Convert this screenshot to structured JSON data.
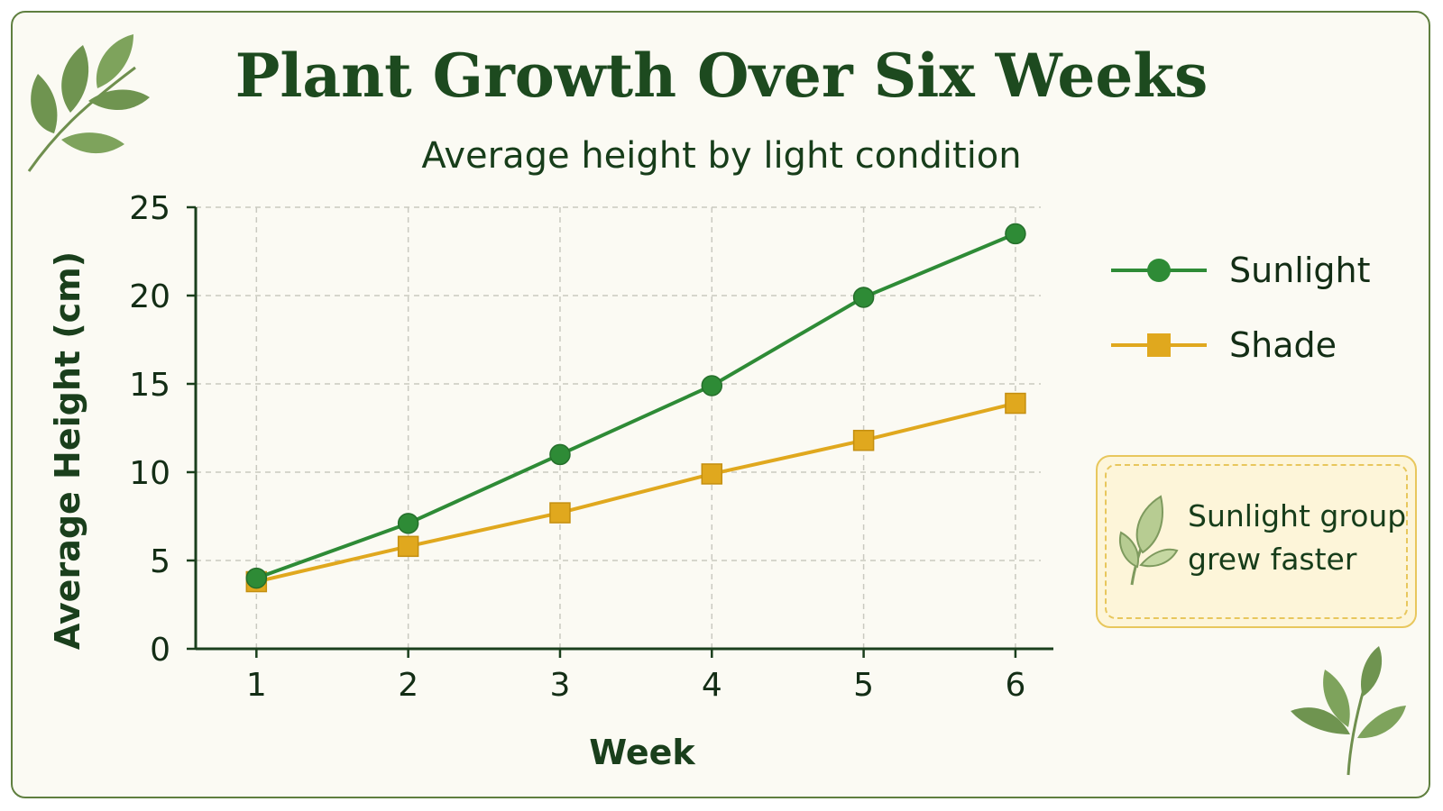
{
  "header": {
    "title": "Plant Growth Over Six Weeks",
    "subtitle": "Average height by light condition"
  },
  "note": {
    "text": "Sunlight group grew faster",
    "icon": "leaf-icon"
  },
  "decorations": {
    "top_left": "leaf-branch-icon",
    "bottom_right": "leaf-branch-icon"
  },
  "colors": {
    "background": "#fbfaf3",
    "frame": "#5f7f3f",
    "title": "#1d4a1f",
    "sunlight": "#2e8b36",
    "shade": "#e0a81e",
    "note_fill": "#fdf5d9",
    "note_border": "#e8c75d"
  },
  "chart_data": {
    "type": "line",
    "x": [
      1,
      2,
      3,
      4,
      5,
      6
    ],
    "xlabel": "Week",
    "ylabel": "Average Height (cm)",
    "xticks": [
      "1",
      "2",
      "3",
      "4",
      "5",
      "6"
    ],
    "yticks": [
      "0",
      "5",
      "10",
      "15",
      "20",
      "25"
    ],
    "xlim": [
      0.6,
      6.25
    ],
    "ylim": [
      0,
      25
    ],
    "grid": true,
    "legend_position": "right",
    "series": [
      {
        "name": "Sunlight",
        "values": [
          4,
          7.1,
          11,
          14.9,
          19.9,
          23.5
        ],
        "color": "#2e8b36",
        "marker": "circle"
      },
      {
        "name": "Shade",
        "values": [
          3.8,
          5.8,
          7.7,
          9.9,
          11.8,
          13.9
        ],
        "color": "#e0a81e",
        "marker": "square"
      }
    ]
  }
}
